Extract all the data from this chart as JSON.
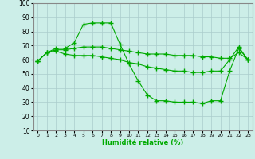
{
  "xlabel": "Humidité relative (%)",
  "xlim": [
    -0.5,
    23.5
  ],
  "ylim": [
    10,
    100
  ],
  "yticks": [
    10,
    20,
    30,
    40,
    50,
    60,
    70,
    80,
    90,
    100
  ],
  "xticks": [
    0,
    1,
    2,
    3,
    4,
    5,
    6,
    7,
    8,
    9,
    10,
    11,
    12,
    13,
    14,
    15,
    16,
    17,
    18,
    19,
    20,
    21,
    22,
    23
  ],
  "bg_color": "#cceee8",
  "grid_color": "#aacccc",
  "line_color": "#00aa00",
  "lines": [
    {
      "x": [
        0,
        1,
        2,
        3,
        4,
        5,
        6,
        7,
        8,
        9,
        10,
        11,
        12,
        13,
        14,
        15,
        16,
        17,
        18,
        19,
        20,
        21,
        22,
        23
      ],
      "y": [
        59,
        65,
        68,
        68,
        72,
        85,
        86,
        86,
        86,
        71,
        57,
        45,
        35,
        31,
        31,
        30,
        30,
        30,
        29,
        31,
        31,
        52,
        68,
        60
      ]
    },
    {
      "x": [
        0,
        1,
        2,
        3,
        4,
        5,
        6,
        7,
        8,
        9,
        10,
        11,
        12,
        13,
        14,
        15,
        16,
        17,
        18,
        19,
        20,
        21,
        22,
        23
      ],
      "y": [
        59,
        65,
        67,
        67,
        68,
        69,
        69,
        69,
        68,
        67,
        66,
        65,
        64,
        64,
        64,
        63,
        63,
        63,
        62,
        62,
        61,
        61,
        65,
        60
      ]
    },
    {
      "x": [
        0,
        1,
        2,
        3,
        4,
        5,
        6,
        7,
        8,
        9,
        10,
        11,
        12,
        13,
        14,
        15,
        16,
        17,
        18,
        19,
        20,
        21,
        22,
        23
      ],
      "y": [
        59,
        65,
        66,
        64,
        63,
        63,
        63,
        62,
        61,
        60,
        58,
        57,
        55,
        54,
        53,
        52,
        52,
        51,
        51,
        52,
        52,
        60,
        69,
        60
      ]
    }
  ]
}
